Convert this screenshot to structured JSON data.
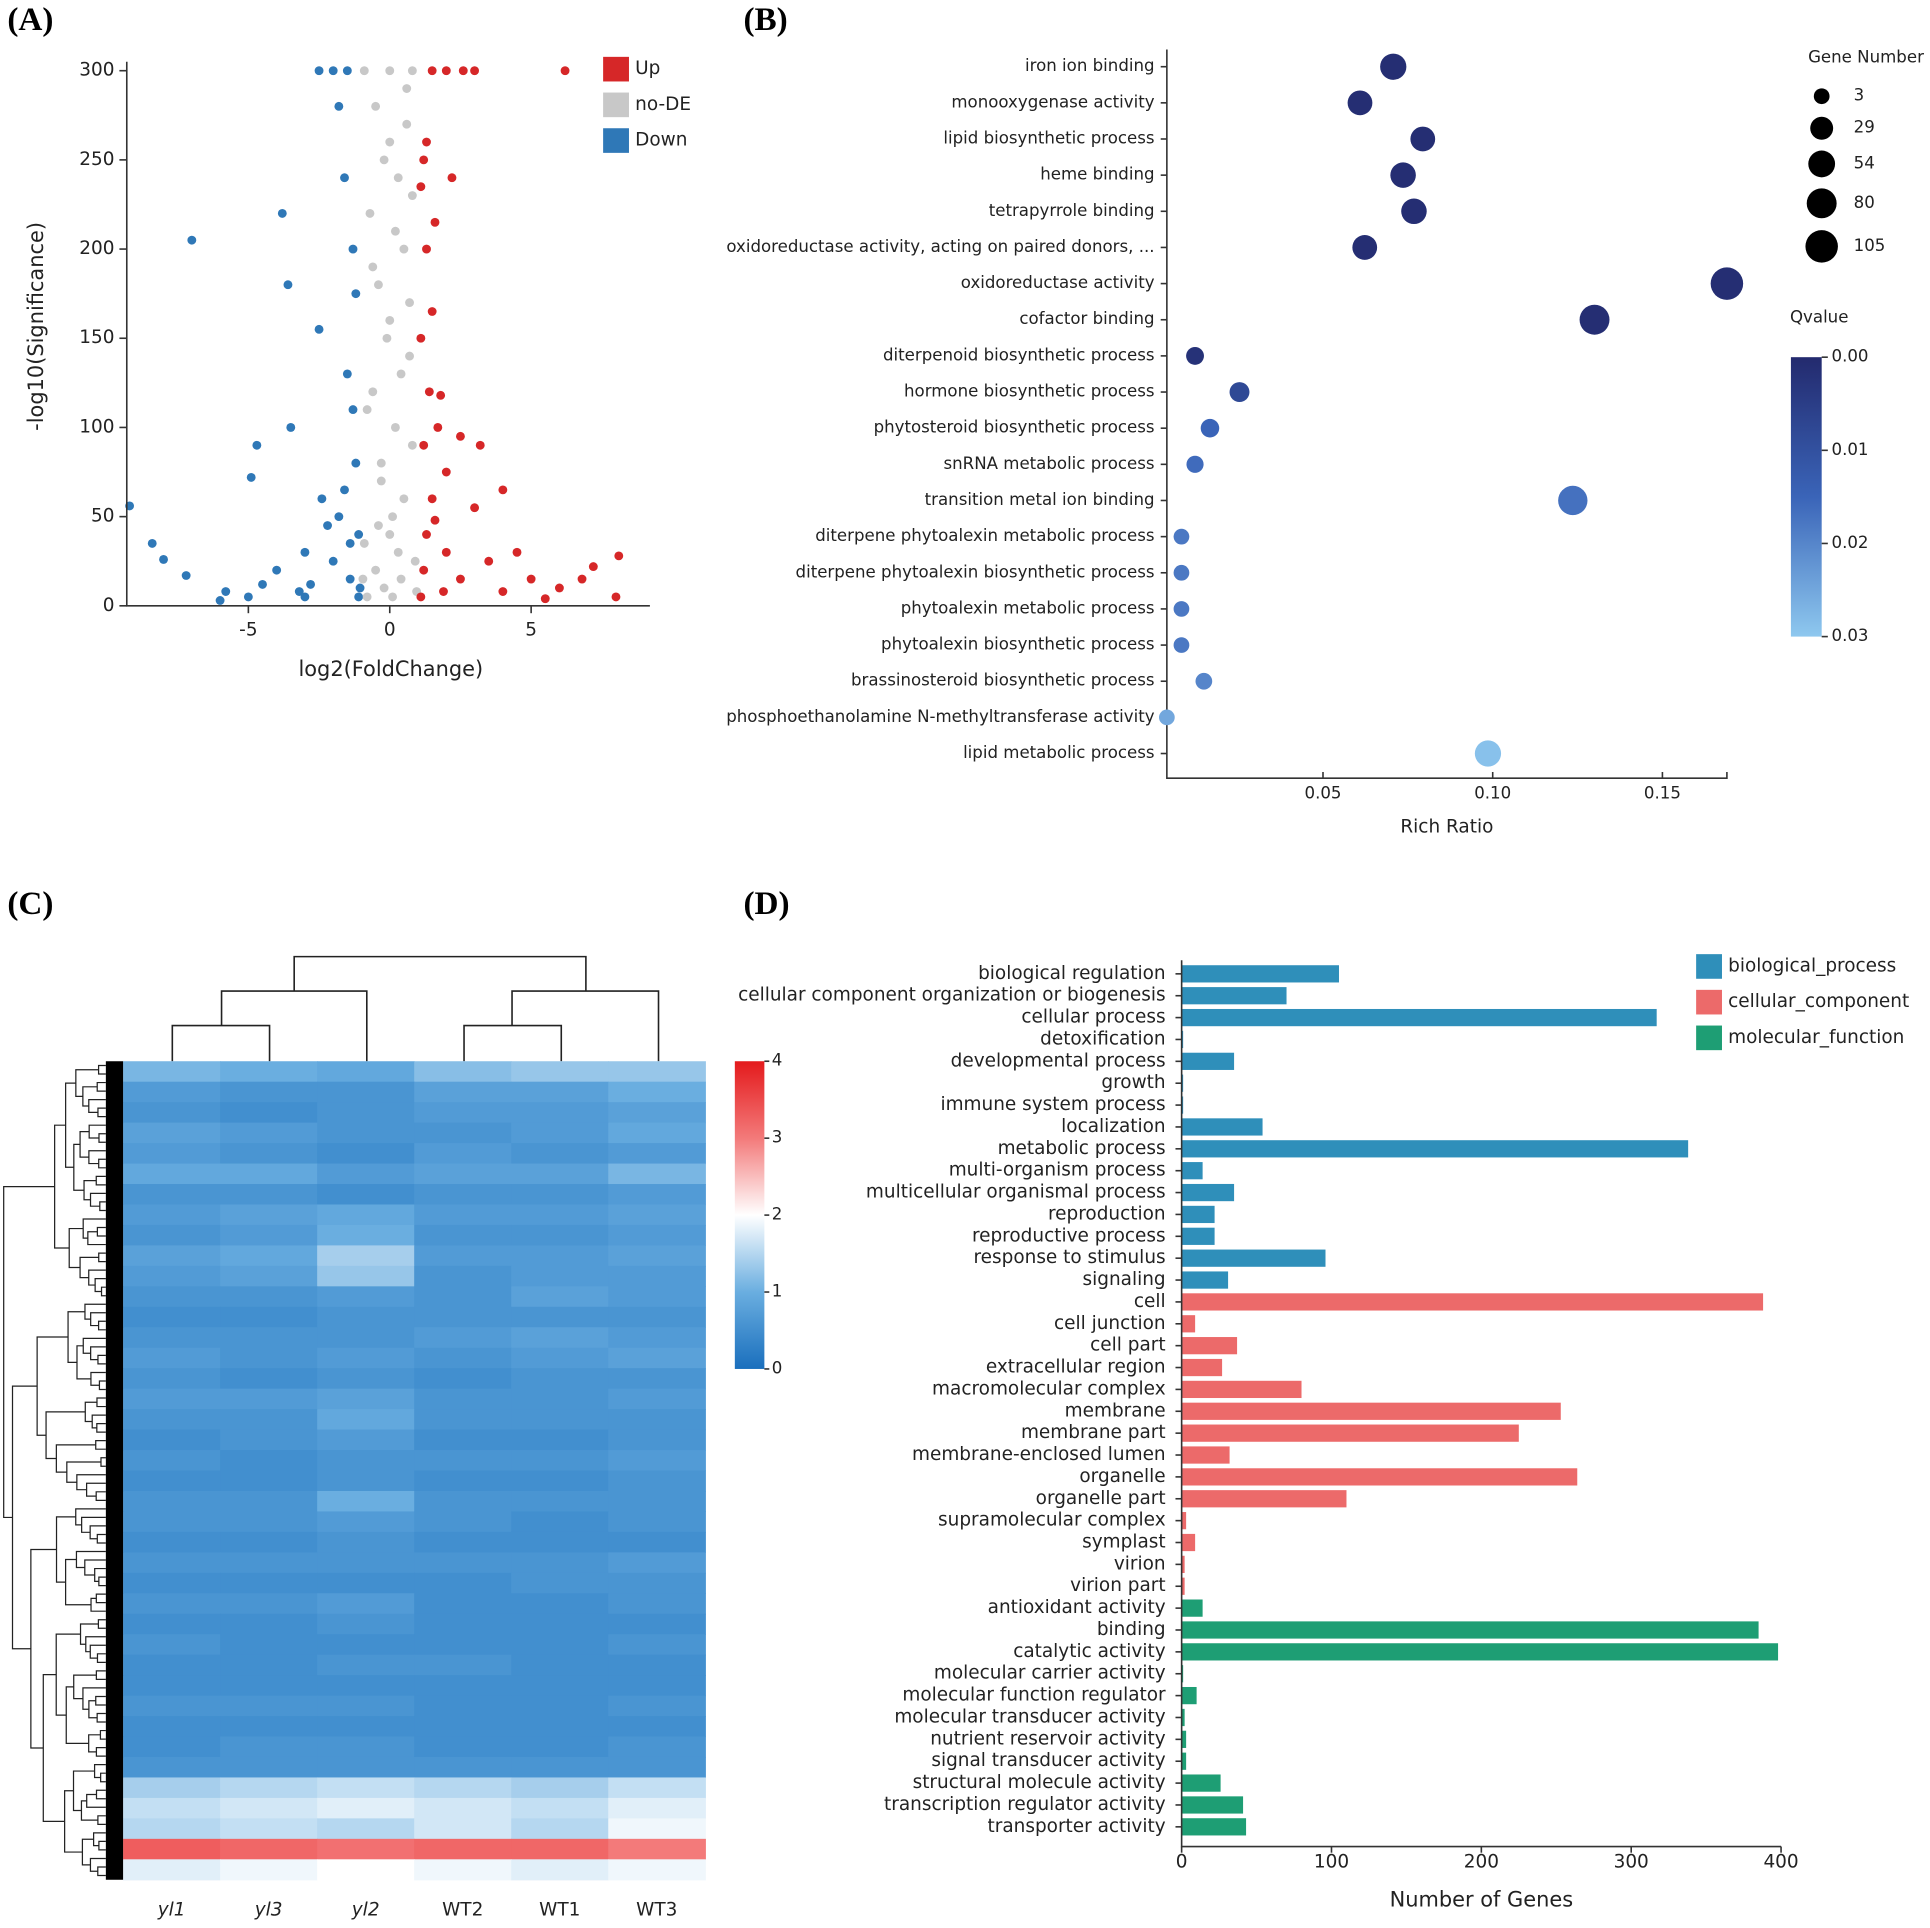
{
  "chart_data": [
    {
      "type": "scatter",
      "panel": "(A)",
      "xlabel": "log2(FoldChange)",
      "ylabel": "-log10(Significance)",
      "xlim": [
        -9.3,
        9.2
      ],
      "ylim": [
        0,
        305
      ],
      "xticks": [
        -5,
        0,
        5
      ],
      "yticks": [
        0,
        50,
        100,
        150,
        200,
        250,
        300
      ],
      "legend": "top-right",
      "series": [
        {
          "name": "Up",
          "color": "#d62728",
          "x": [
            1.1,
            1.2,
            1.3,
            1.5,
            1.2,
            1.4,
            1.1,
            1.3,
            1.2,
            1.5,
            2,
            2.6,
            3,
            6.2,
            1.3,
            1.1,
            2.2,
            1.6,
            1.5,
            1.8,
            1.7,
            2.5,
            3.2,
            2,
            3,
            4,
            4.5,
            5,
            6,
            6.8,
            7.2,
            8.1,
            8,
            5.5,
            4,
            2.5,
            2,
            3.5,
            1.6,
            1.9
          ],
          "values": [
            5,
            20,
            40,
            60,
            90,
            120,
            150,
            200,
            250,
            300,
            300,
            300,
            300,
            300,
            260,
            235,
            240,
            215,
            165,
            118,
            100,
            95,
            90,
            75,
            55,
            65,
            30,
            15,
            10,
            15,
            22,
            28,
            5,
            4,
            8,
            15,
            30,
            25,
            48,
            8
          ]
        },
        {
          "name": "no-DE",
          "color": "#c8c8c8",
          "x": [
            -0.8,
            -0.5,
            0,
            0.5,
            -0.3,
            0.2,
            -0.6,
            0.7,
            0,
            -0.4,
            0.5,
            -0.7,
            0.3,
            0,
            -0.5,
            0.6,
            -0.9,
            0,
            0.8,
            -0.2,
            0.4,
            0.9,
            -0.9,
            0.1,
            -0.3,
            0.8,
            -0.8,
            0.4,
            -0.1,
            0.7,
            -0.6,
            0.2,
            0.8,
            -0.2,
            0.6,
            0.95,
            -0.95,
            0.3,
            -0.4,
            0.1
          ],
          "values": [
            5,
            20,
            40,
            60,
            80,
            100,
            120,
            140,
            160,
            180,
            200,
            220,
            240,
            260,
            280,
            290,
            300,
            300,
            300,
            10,
            15,
            25,
            35,
            50,
            70,
            90,
            110,
            130,
            150,
            170,
            190,
            210,
            230,
            250,
            270,
            8,
            15,
            30,
            45,
            5
          ]
        },
        {
          "name": "Down",
          "color": "#2f78b7",
          "x": [
            -9.2,
            -8.4,
            -8,
            -7.2,
            -7,
            -5.8,
            -5,
            -4.9,
            -4.7,
            -4.5,
            -4,
            -3.8,
            -3.6,
            -3.5,
            -3.2,
            -3,
            -2.5,
            -2.4,
            -2.2,
            -2,
            -1.8,
            -1.6,
            -1.5,
            -1.4,
            -1.3,
            -1.2,
            -1.1,
            -1.05,
            -1.5,
            -2,
            -2.5,
            -1.2,
            -1.3,
            -1.6,
            -1.8,
            -3,
            -6,
            -2.8,
            -1.1,
            -1.4
          ],
          "values": [
            56,
            35,
            26,
            17,
            205,
            8,
            5,
            72,
            90,
            12,
            20,
            220,
            180,
            100,
            8,
            30,
            155,
            60,
            45,
            25,
            280,
            240,
            130,
            15,
            200,
            80,
            40,
            10,
            300,
            300,
            300,
            175,
            110,
            65,
            50,
            5,
            3,
            12,
            5,
            35
          ]
        }
      ]
    },
    {
      "type": "bubble",
      "panel": "(B)",
      "xlabel": "Rich Ratio",
      "categories": [
        "iron ion binding",
        "monooxygenase activity",
        "lipid biosynthetic process",
        "heme binding",
        "tetrapyrrole binding",
        "oxidoreductase activity, acting on paired donors, ...",
        "oxidoreductase activity",
        "cofactor binding",
        "diterpenoid biosynthetic process",
        "hormone biosynthetic process",
        "phytosteroid biosynthetic process",
        "snRNA metabolic process",
        "transition metal ion binding",
        "diterpene phytoalexin metabolic process",
        "diterpene phytoalexin biosynthetic process",
        "phytoalexin metabolic process",
        "phytoalexin biosynthetic process",
        "brassinosteroid biosynthetic process",
        "phosphoethanolamine N-methyltransferase activity",
        "lipid metabolic process"
      ],
      "values": [
        0.0707,
        0.0609,
        0.0794,
        0.0736,
        0.0768,
        0.0623,
        0.169,
        0.13,
        0.0123,
        0.0254,
        0.0167,
        0.0123,
        0.1236,
        0.0083,
        0.0083,
        0.0083,
        0.0083,
        0.0149,
        0.004,
        0.0986
      ],
      "sizes": [
        50,
        40,
        40,
        45,
        45,
        40,
        105,
        80,
        8,
        15,
        10,
        6,
        75,
        3,
        3,
        3,
        3,
        5,
        3,
        50
      ],
      "qvalues": [
        0.001,
        0.001,
        0.001,
        0.001,
        0.001,
        0.001,
        0.001,
        0.001,
        0.002,
        0.008,
        0.015,
        0.016,
        0.017,
        0.018,
        0.018,
        0.018,
        0.018,
        0.02,
        0.025,
        0.029
      ],
      "xlim": [
        0.004,
        0.169
      ],
      "xticks": [
        0.05,
        {
          "value": 0.1,
          "label": "0.10"
        },
        0.15
      ],
      "size_title": "Gene Number",
      "size_legend": [
        3,
        29,
        54,
        80,
        105
      ],
      "color_title": "Qvalue",
      "clim": [
        0,
        0.03
      ],
      "cticks": [
        {
          "value": 0,
          "label": "0.00"
        },
        0.01,
        0.02,
        0.03
      ],
      "colorscale": [
        "#232a6e",
        "#3a64b8",
        "#8ec8ef"
      ]
    },
    {
      "type": "heatmap",
      "panel": "(C)",
      "columns": [
        "yl1",
        "yl3",
        "yl2",
        "WT2",
        "WT1",
        "WT3"
      ],
      "values": [
        [
          1.1,
          1.0,
          0.9,
          1.2,
          1.3,
          1.3
        ],
        [
          0.7,
          0.6,
          0.6,
          0.8,
          0.8,
          1.0
        ],
        [
          0.6,
          0.5,
          0.6,
          0.7,
          0.7,
          0.8
        ],
        [
          0.8,
          0.7,
          0.6,
          0.6,
          0.7,
          0.9
        ],
        [
          0.7,
          0.6,
          0.5,
          0.7,
          0.6,
          0.7
        ],
        [
          0.9,
          0.9,
          0.7,
          0.8,
          0.8,
          1.1
        ],
        [
          0.6,
          0.6,
          0.5,
          0.6,
          0.6,
          0.7
        ],
        [
          0.7,
          0.8,
          0.9,
          0.7,
          0.7,
          0.8
        ],
        [
          0.6,
          0.7,
          1.0,
          0.6,
          0.6,
          0.7
        ],
        [
          0.8,
          0.9,
          1.4,
          0.7,
          0.7,
          0.8
        ],
        [
          0.7,
          0.8,
          1.3,
          0.6,
          0.7,
          0.7
        ],
        [
          0.6,
          0.6,
          0.7,
          0.6,
          0.8,
          0.7
        ],
        [
          0.5,
          0.5,
          0.6,
          0.6,
          0.6,
          0.6
        ],
        [
          0.6,
          0.6,
          0.6,
          0.7,
          0.8,
          0.7
        ],
        [
          0.7,
          0.6,
          0.7,
          0.6,
          0.7,
          0.8
        ],
        [
          0.6,
          0.5,
          0.6,
          0.5,
          0.6,
          0.6
        ],
        [
          0.7,
          0.7,
          0.8,
          0.6,
          0.6,
          0.7
        ],
        [
          0.6,
          0.6,
          0.9,
          0.6,
          0.6,
          0.6
        ],
        [
          0.5,
          0.6,
          0.7,
          0.5,
          0.5,
          0.6
        ],
        [
          0.6,
          0.5,
          0.6,
          0.6,
          0.6,
          0.7
        ],
        [
          0.5,
          0.5,
          0.6,
          0.5,
          0.5,
          0.6
        ],
        [
          0.6,
          0.6,
          1.0,
          0.6,
          0.6,
          0.6
        ],
        [
          0.6,
          0.6,
          0.7,
          0.6,
          0.5,
          0.6
        ],
        [
          0.5,
          0.5,
          0.6,
          0.5,
          0.5,
          0.5
        ],
        [
          0.6,
          0.6,
          0.6,
          0.6,
          0.6,
          0.7
        ],
        [
          0.5,
          0.5,
          0.5,
          0.5,
          0.6,
          0.6
        ],
        [
          0.6,
          0.6,
          0.7,
          0.5,
          0.5,
          0.6
        ],
        [
          0.5,
          0.5,
          0.6,
          0.5,
          0.5,
          0.5
        ],
        [
          0.6,
          0.5,
          0.5,
          0.5,
          0.5,
          0.6
        ],
        [
          0.5,
          0.5,
          0.6,
          0.6,
          0.5,
          0.5
        ],
        [
          0.5,
          0.5,
          0.5,
          0.5,
          0.5,
          0.5
        ],
        [
          0.6,
          0.6,
          0.6,
          0.5,
          0.5,
          0.6
        ],
        [
          0.5,
          0.5,
          0.5,
          0.5,
          0.5,
          0.5
        ],
        [
          0.5,
          0.6,
          0.6,
          0.5,
          0.5,
          0.6
        ],
        [
          0.6,
          0.6,
          0.6,
          0.6,
          0.6,
          0.6
        ],
        [
          1.4,
          1.5,
          1.6,
          1.5,
          1.4,
          1.6
        ],
        [
          1.6,
          1.7,
          1.8,
          1.7,
          1.6,
          1.8
        ],
        [
          1.5,
          1.6,
          1.5,
          1.7,
          1.5,
          1.9
        ],
        [
          3.3,
          3.2,
          3.1,
          3.2,
          3.2,
          3.0
        ],
        [
          1.8,
          1.9,
          2.0,
          1.9,
          1.8,
          1.9
        ]
      ],
      "clim": [
        0,
        4
      ],
      "cticks": [
        0,
        1,
        2,
        3,
        4
      ],
      "colorscale": [
        "#1a6fbd",
        "#6aaee0",
        "#ffffff",
        "#f37a7a",
        "#e41a1c"
      ]
    },
    {
      "type": "bar",
      "panel": "(D)",
      "orientation": "horizontal",
      "xlabel": "Number of Genes",
      "categories": [
        "biological regulation",
        "cellular component organization or biogenesis",
        "cellular process",
        "detoxification",
        "developmental process",
        "growth",
        "immune system process",
        "localization",
        "metabolic process",
        "multi-organism process",
        "multicellular organismal process",
        "reproduction",
        "reproductive process",
        "response to stimulus",
        "signaling",
        "cell",
        "cell junction",
        "cell part",
        "extracellular region",
        "macromolecular complex",
        "membrane",
        "membrane part",
        "membrane-enclosed lumen",
        "organelle",
        "organelle part",
        "supramolecular complex",
        "symplast",
        "virion",
        "virion part",
        "antioxidant activity",
        "binding",
        "catalytic activity",
        "molecular carrier activity",
        "molecular function regulator",
        "molecular transducer activity",
        "nutrient reservoir activity",
        "signal transducer activity",
        "structural molecule activity",
        "transcription regulator activity",
        "transporter activity"
      ],
      "xlim": [
        0,
        400
      ],
      "xticks": [
        0,
        100,
        200,
        300,
        400
      ],
      "legend": "top-right",
      "series": [
        {
          "name": "biological_process",
          "color": "#2f8fba",
          "values": [
            105,
            70,
            317,
            1,
            35,
            1,
            1,
            54,
            338,
            14,
            35,
            22,
            22,
            96,
            31,
            null,
            null,
            null,
            null,
            null,
            null,
            null,
            null,
            null,
            null,
            null,
            null,
            null,
            null,
            null,
            null,
            null,
            null,
            null,
            null,
            null,
            null,
            null,
            null,
            null
          ]
        },
        {
          "name": "cellular_component",
          "color": "#ec6a6a",
          "values": [
            null,
            null,
            null,
            null,
            null,
            null,
            null,
            null,
            null,
            null,
            null,
            null,
            null,
            null,
            null,
            388,
            9,
            37,
            27,
            80,
            253,
            225,
            32,
            264,
            110,
            3,
            9,
            2,
            2,
            null,
            null,
            null,
            null,
            null,
            null,
            null,
            null,
            null,
            null,
            null
          ]
        },
        {
          "name": "molecular_function",
          "color": "#1e9e74",
          "values": [
            null,
            null,
            null,
            null,
            null,
            null,
            null,
            null,
            null,
            null,
            null,
            null,
            null,
            null,
            null,
            null,
            null,
            null,
            null,
            null,
            null,
            null,
            null,
            null,
            null,
            null,
            null,
            null,
            null,
            14,
            385,
            398,
            1,
            10,
            2,
            3,
            3,
            26,
            41,
            43
          ]
        }
      ]
    }
  ]
}
